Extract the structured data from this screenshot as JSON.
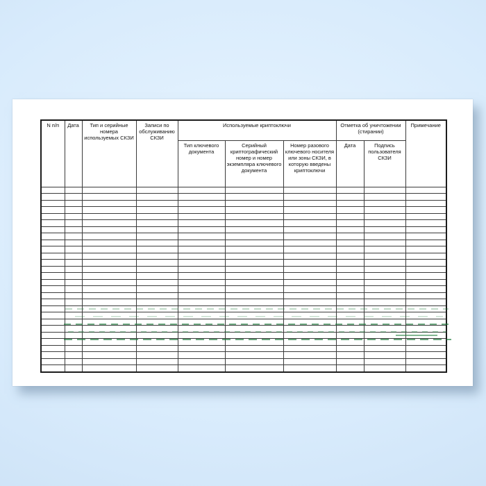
{
  "scene": {
    "paper_color": "#ffffff",
    "background_colors": {
      "center": "#e9f5ff",
      "mid": "#d8ebfc",
      "edge": "#c9dff4"
    }
  },
  "journal_table": {
    "grid_color": "#3a3a3a",
    "outer_border_color": "#1c1c1c",
    "text_color": "#101010",
    "group_headers": {
      "crypto_keys": "Используемые криптоключи",
      "destruction": "Отметка об уничтожении (стирании)"
    },
    "columns": [
      {
        "label": "N п/п"
      },
      {
        "label": "Дата"
      },
      {
        "label": "Тип и серийные номера используемых СКЗИ"
      },
      {
        "label": "Записи по обслуживанию СКЗИ"
      },
      {
        "label": "Тип ключевого документа"
      },
      {
        "label": "Серийный криптографический номер и номер экземпляра ключевого документа"
      },
      {
        "label": "Номер разового ключевого носителя или зоны СКЗИ, в которую введены криптоключи"
      },
      {
        "label": "Дата"
      },
      {
        "label": "Подпись пользователя СКЗИ"
      },
      {
        "label": "Примечание"
      }
    ],
    "empty_row_count": 28,
    "empty_cell_text": ""
  },
  "watermark": {
    "color": "#1a7a38"
  }
}
